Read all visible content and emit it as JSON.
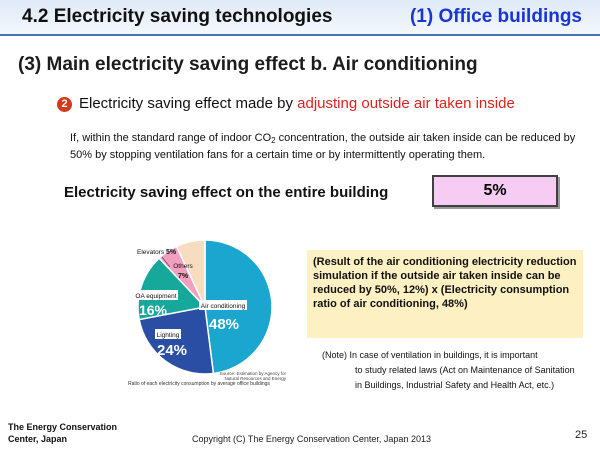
{
  "header": {
    "title": "4.2 Electricity saving technologies",
    "subtitle": "(1) Office buildings"
  },
  "main_title": "(3) Main electricity saving effect  b. Air conditioning",
  "item": {
    "number": "2",
    "lead_prefix": "Electricity saving effect made by ",
    "lead_highlight": "adjusting outside air taken inside"
  },
  "description": {
    "part1": "If, within the standard range of indoor CO",
    "sub": "2",
    "part2": " concentration, the outside air taken inside can be reduced by 50% by stopping ventilation fans for a certain time or by intermittently operating them."
  },
  "effect": {
    "label": "Electricity saving effect on the entire building",
    "value": "5%"
  },
  "result_text": "(Result of the air conditioning electricity reduction simulation if the outside air taken inside can be reduced by 50%, 12%) x (Electricity consumption ratio of air conditioning, 48%)",
  "note": {
    "prefix": "(Note) In case of ventilation in buildings, it is important",
    "rest": "to study related laws (Act on Maintenance of Sanitation in Buildings, Industrial Safety and Health Act, etc.)"
  },
  "chart_data": {
    "type": "pie",
    "title": "",
    "categories": [
      "Air conditioning",
      "Lighting",
      "OA equipment",
      "Elevators",
      "Others"
    ],
    "values": [
      48,
      24,
      16,
      5,
      7
    ],
    "value_labels": [
      "48%",
      "24%",
      "16%",
      "5%",
      "7%"
    ],
    "colors": [
      "#1ba6cf",
      "#2a4ea3",
      "#16a89a",
      "#f29fc0",
      "#f8dcbf"
    ],
    "caption": "Ratio of each electricity consumption by average office buildings",
    "source": "Source: Estimation by Agency for Natural Resources and Energy"
  },
  "footer": {
    "org_line1": "The Energy Conservation",
    "org_line2": "Center, Japan",
    "copyright": "Copyright (C) The Energy Conservation Center, Japan 2013",
    "page": "25"
  }
}
